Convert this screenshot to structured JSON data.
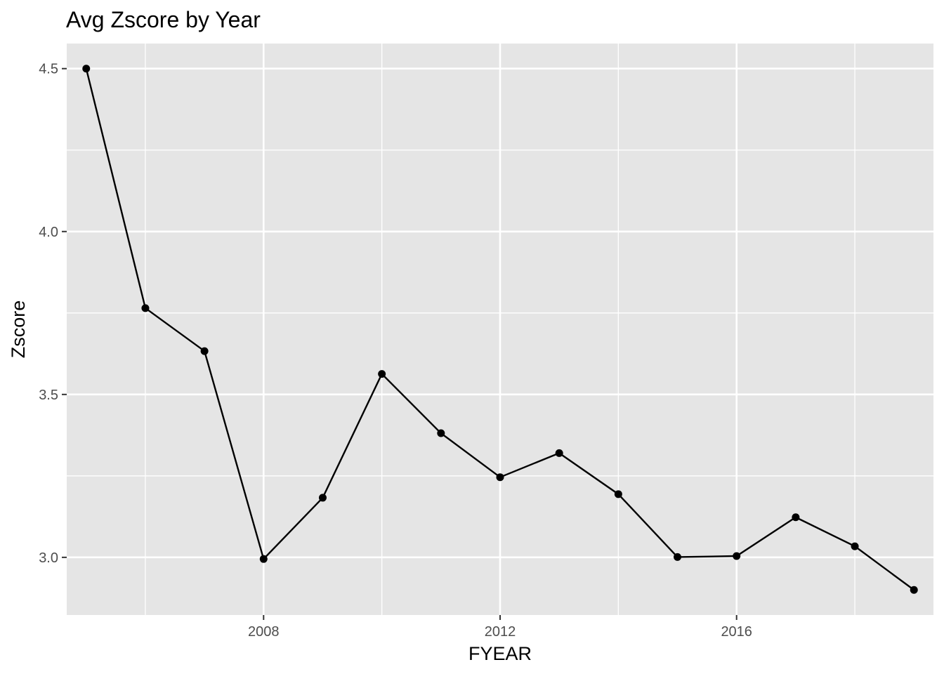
{
  "chart_data": {
    "type": "line",
    "title": "Avg Zscore by Year",
    "xlabel": "FYEAR",
    "ylabel": "Zscore",
    "x": [
      2005,
      2006,
      2007,
      2008,
      2009,
      2010,
      2011,
      2012,
      2013,
      2014,
      2015,
      2016,
      2017,
      2018,
      2019
    ],
    "y": [
      4.5,
      3.765,
      3.633,
      2.995,
      3.183,
      3.563,
      3.381,
      3.246,
      3.32,
      3.194,
      3.001,
      3.004,
      3.123,
      3.034,
      2.9
    ],
    "xlim": [
      2004.67,
      2019.33
    ],
    "ylim": [
      2.823,
      4.577
    ],
    "x_ticks": [
      2008,
      2012,
      2016
    ],
    "x_tick_labels": [
      "2008",
      "2012",
      "2016"
    ],
    "x_minor_ticks": [
      2006,
      2010,
      2014,
      2018
    ],
    "y_ticks": [
      3.0,
      3.5,
      4.0,
      4.5
    ],
    "y_tick_labels": [
      "3.0",
      "3.5",
      "4.0",
      "4.5"
    ],
    "y_minor_ticks": [
      3.25,
      3.75,
      4.25
    ],
    "grid": true,
    "legend": "none",
    "colors": {
      "panel": "#e5e5e5",
      "grid": "#ffffff",
      "line": "#000000",
      "point": "#000000",
      "tick_text": "#4d4d4d"
    }
  }
}
